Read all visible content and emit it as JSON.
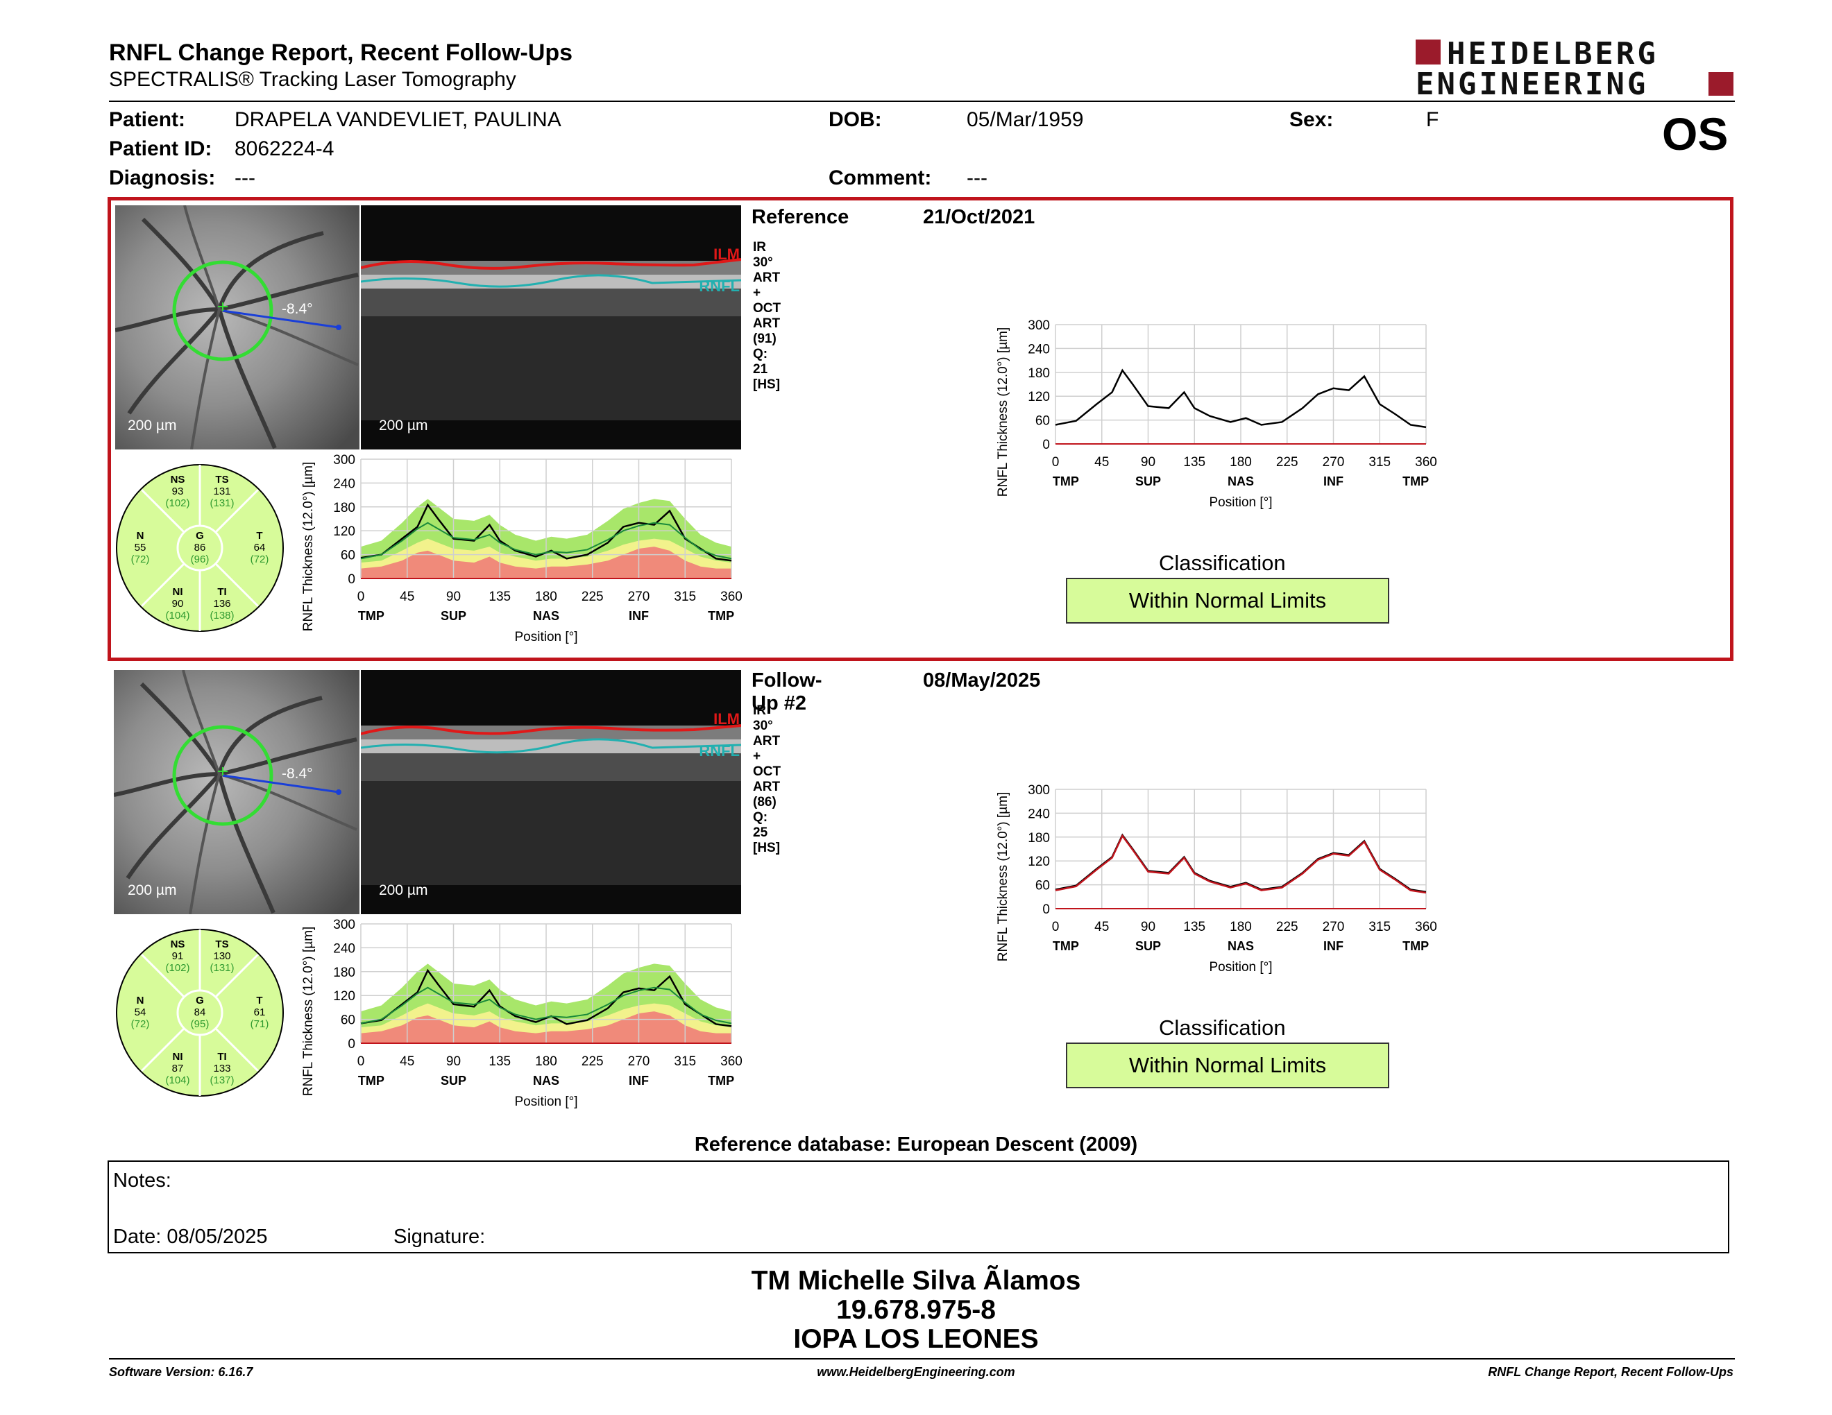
{
  "header": {
    "title": "RNFL Change Report, Recent Follow-Ups",
    "subtitle": "SPECTRALIS® Tracking Laser Tomography",
    "logo_line1": "HEIDELBERG",
    "logo_line2": "ENGINEERING",
    "eye": "OS"
  },
  "patient": {
    "patient_label": "Patient:",
    "patient_value": "DRAPELA VANDEVLIET, PAULINA",
    "id_label": "Patient ID:",
    "id_value": "8062224-4",
    "diagnosis_label": "Diagnosis:",
    "diagnosis_value": "---",
    "dob_label": "DOB:",
    "dob_value": "05/Mar/1959",
    "comment_label": "Comment:",
    "comment_value": "---",
    "sex_label": "Sex:",
    "sex_value": "F"
  },
  "colors": {
    "frame_red": "#c0141c",
    "normal_green": "#a8e66a",
    "borderline_yellow": "#f2f28c",
    "outside_red": "#f08a7a",
    "class_box": "#d7fb9a",
    "logo": "#9b1b2b"
  },
  "exams": [
    {
      "label": "Reference",
      "date": "21/Oct/2021",
      "acq": "IR 30° ART + OCT ART (91) Q: 21 [HS]",
      "angle": "-8.4°",
      "scale_fundus": "200 µm",
      "scale_oct": "200 µm",
      "ilm": "ILM",
      "rnfl": "RNFL",
      "classification_title": "Classification",
      "classification": "Within Normal Limits",
      "sectors": {
        "NS": {
          "label": "NS",
          "value": "93",
          "norm": "(102)"
        },
        "TS": {
          "label": "TS",
          "value": "131",
          "norm": "(131)"
        },
        "N": {
          "label": "N",
          "value": "55",
          "norm": "(72)"
        },
        "G": {
          "label": "G",
          "value": "86",
          "norm": "(96)"
        },
        "T": {
          "label": "T",
          "value": "64",
          "norm": "(72)"
        },
        "NI": {
          "label": "NI",
          "value": "90",
          "norm": "(104)"
        },
        "TI": {
          "label": "TI",
          "value": "136",
          "norm": "(138)"
        }
      }
    },
    {
      "label": "Follow-Up #2",
      "date": "08/May/2025",
      "acq": "IR 30° ART + OCT ART (86) Q: 25 [HS]",
      "angle": "-8.4°",
      "scale_fundus": "200 µm",
      "scale_oct": "200 µm",
      "ilm": "ILM",
      "rnfl": "RNFL",
      "classification_title": "Classification",
      "classification": "Within Normal Limits",
      "sectors": {
        "NS": {
          "label": "NS",
          "value": "91",
          "norm": "(102)"
        },
        "TS": {
          "label": "TS",
          "value": "130",
          "norm": "(131)"
        },
        "N": {
          "label": "N",
          "value": "54",
          "norm": "(72)"
        },
        "G": {
          "label": "G",
          "value": "84",
          "norm": "(95)"
        },
        "T": {
          "label": "T",
          "value": "61",
          "norm": "(71)"
        },
        "NI": {
          "label": "NI",
          "value": "87",
          "norm": "(104)"
        },
        "TI": {
          "label": "TI",
          "value": "133",
          "norm": "(137)"
        }
      }
    }
  ],
  "chart_data": [
    {
      "type": "line",
      "panel": "reference-normative",
      "ylabel": "RNFL Thickness (12.0°) [µm]",
      "xlabel": "Position [°]",
      "ylim": [
        0,
        300
      ],
      "xlim": [
        0,
        360
      ],
      "y_ticks": [
        0,
        60,
        120,
        180,
        240,
        300
      ],
      "x_ticks": [
        0,
        45,
        90,
        135,
        180,
        225,
        270,
        315,
        360
      ],
      "x_sector_labels": [
        [
          "TMP",
          10
        ],
        [
          "SUP",
          90
        ],
        [
          "NAS",
          180
        ],
        [
          "INF",
          270
        ],
        [
          "TMP",
          350
        ]
      ],
      "x": [
        0,
        20,
        40,
        55,
        65,
        75,
        90,
        110,
        125,
        135,
        150,
        170,
        185,
        200,
        220,
        240,
        255,
        270,
        285,
        300,
        315,
        330,
        345,
        360
      ],
      "series": [
        {
          "values": [
            52,
            60,
            100,
            130,
            185,
            150,
            100,
            95,
            135,
            95,
            70,
            55,
            70,
            50,
            60,
            90,
            130,
            140,
            135,
            170,
            100,
            75,
            50,
            45
          ]
        }
      ],
      "normal_upper": [
        80,
        95,
        140,
        180,
        200,
        180,
        150,
        145,
        160,
        135,
        110,
        95,
        105,
        100,
        110,
        145,
        175,
        190,
        200,
        195,
        150,
        110,
        90,
        80
      ],
      "normal_lower": [
        40,
        45,
        70,
        90,
        100,
        90,
        75,
        70,
        80,
        65,
        55,
        45,
        50,
        50,
        55,
        70,
        85,
        95,
        100,
        95,
        75,
        55,
        45,
        40
      ],
      "outside_lower": [
        25,
        30,
        45,
        65,
        70,
        60,
        45,
        40,
        55,
        40,
        30,
        25,
        30,
        30,
        35,
        45,
        60,
        75,
        80,
        70,
        45,
        30,
        25,
        25
      ]
    },
    {
      "type": "line",
      "panel": "reference-change",
      "ylabel": "RNFL Thickness (12.0°) [µm]",
      "xlabel": "Position [°]",
      "ylim": [
        0,
        300
      ],
      "xlim": [
        0,
        360
      ],
      "y_ticks": [
        0,
        60,
        120,
        180,
        240,
        300
      ],
      "x_ticks": [
        0,
        45,
        90,
        135,
        180,
        225,
        270,
        315,
        360
      ],
      "x_sector_labels": [
        [
          "TMP",
          10
        ],
        [
          "SUP",
          90
        ],
        [
          "NAS",
          180
        ],
        [
          "INF",
          270
        ],
        [
          "TMP",
          350
        ]
      ],
      "x": [
        0,
        20,
        40,
        55,
        65,
        75,
        90,
        110,
        125,
        135,
        150,
        170,
        185,
        200,
        220,
        240,
        255,
        270,
        285,
        300,
        315,
        330,
        345,
        360
      ],
      "series": [
        {
          "values": [
            48,
            58,
            100,
            130,
            185,
            150,
            95,
            90,
            130,
            90,
            70,
            55,
            65,
            48,
            55,
            90,
            125,
            140,
            135,
            170,
            100,
            75,
            48,
            42
          ]
        }
      ]
    },
    {
      "type": "line",
      "panel": "followup-normative",
      "ylabel": "RNFL Thickness (12.0°) [µm]",
      "xlabel": "Position [°]",
      "ylim": [
        0,
        300
      ],
      "xlim": [
        0,
        360
      ],
      "y_ticks": [
        0,
        60,
        120,
        180,
        240,
        300
      ],
      "x_ticks": [
        0,
        45,
        90,
        135,
        180,
        225,
        270,
        315,
        360
      ],
      "x_sector_labels": [
        [
          "TMP",
          10
        ],
        [
          "SUP",
          90
        ],
        [
          "NAS",
          180
        ],
        [
          "INF",
          270
        ],
        [
          "TMP",
          350
        ]
      ],
      "x": [
        0,
        20,
        40,
        55,
        65,
        75,
        90,
        110,
        125,
        135,
        150,
        170,
        185,
        200,
        220,
        240,
        255,
        270,
        285,
        300,
        315,
        330,
        345,
        360
      ],
      "series": [
        {
          "values": [
            50,
            58,
            98,
            128,
            183,
            148,
            98,
            92,
            133,
            93,
            68,
            53,
            68,
            48,
            58,
            88,
            128,
            138,
            133,
            168,
            98,
            73,
            48,
            43
          ]
        }
      ],
      "normal_upper": [
        80,
        95,
        140,
        180,
        200,
        180,
        150,
        145,
        160,
        135,
        110,
        95,
        105,
        100,
        110,
        145,
        175,
        190,
        200,
        195,
        150,
        110,
        90,
        80
      ],
      "normal_lower": [
        40,
        45,
        70,
        90,
        100,
        90,
        75,
        70,
        80,
        65,
        55,
        45,
        50,
        50,
        55,
        70,
        85,
        95,
        100,
        95,
        75,
        55,
        45,
        40
      ],
      "outside_lower": [
        25,
        30,
        45,
        65,
        70,
        60,
        45,
        40,
        55,
        40,
        30,
        25,
        30,
        30,
        35,
        45,
        60,
        75,
        80,
        70,
        45,
        30,
        25,
        25
      ]
    },
    {
      "type": "line",
      "panel": "followup-change",
      "ylabel": "RNFL Thickness (12.0°) [µm]",
      "xlabel": "Position [°]",
      "ylim": [
        0,
        300
      ],
      "xlim": [
        0,
        360
      ],
      "y_ticks": [
        0,
        60,
        120,
        180,
        240,
        300
      ],
      "x_ticks": [
        0,
        45,
        90,
        135,
        180,
        225,
        270,
        315,
        360
      ],
      "x_sector_labels": [
        [
          "TMP",
          10
        ],
        [
          "SUP",
          90
        ],
        [
          "NAS",
          180
        ],
        [
          "INF",
          270
        ],
        [
          "TMP",
          350
        ]
      ],
      "x": [
        0,
        20,
        40,
        55,
        65,
        75,
        90,
        110,
        125,
        135,
        150,
        170,
        185,
        200,
        220,
        240,
        255,
        270,
        285,
        300,
        315,
        330,
        345,
        360
      ],
      "series": [
        {
          "values": [
            48,
            58,
            100,
            130,
            185,
            150,
            95,
            90,
            130,
            90,
            70,
            55,
            65,
            48,
            55,
            90,
            125,
            140,
            135,
            170,
            100,
            75,
            48,
            42
          ]
        },
        {
          "values": [
            46,
            56,
            98,
            128,
            183,
            148,
            93,
            88,
            128,
            88,
            68,
            53,
            63,
            46,
            53,
            88,
            123,
            138,
            133,
            168,
            98,
            73,
            46,
            40
          ]
        }
      ]
    }
  ],
  "database": "Reference database: European Descent (2009)",
  "notes": {
    "notes_label": "Notes:",
    "date_label": "Date: 08/05/2025",
    "signature_label": "Signature:"
  },
  "operator": {
    "name": "TM Michelle Silva Ãlamos",
    "id": "19.678.975-8",
    "institution": "IOPA LOS LEONES"
  },
  "footer": {
    "software": "Software Version: 6.16.7",
    "website": "www.HeidelbergEngineering.com",
    "report": "RNFL Change Report, Recent Follow-Ups"
  }
}
